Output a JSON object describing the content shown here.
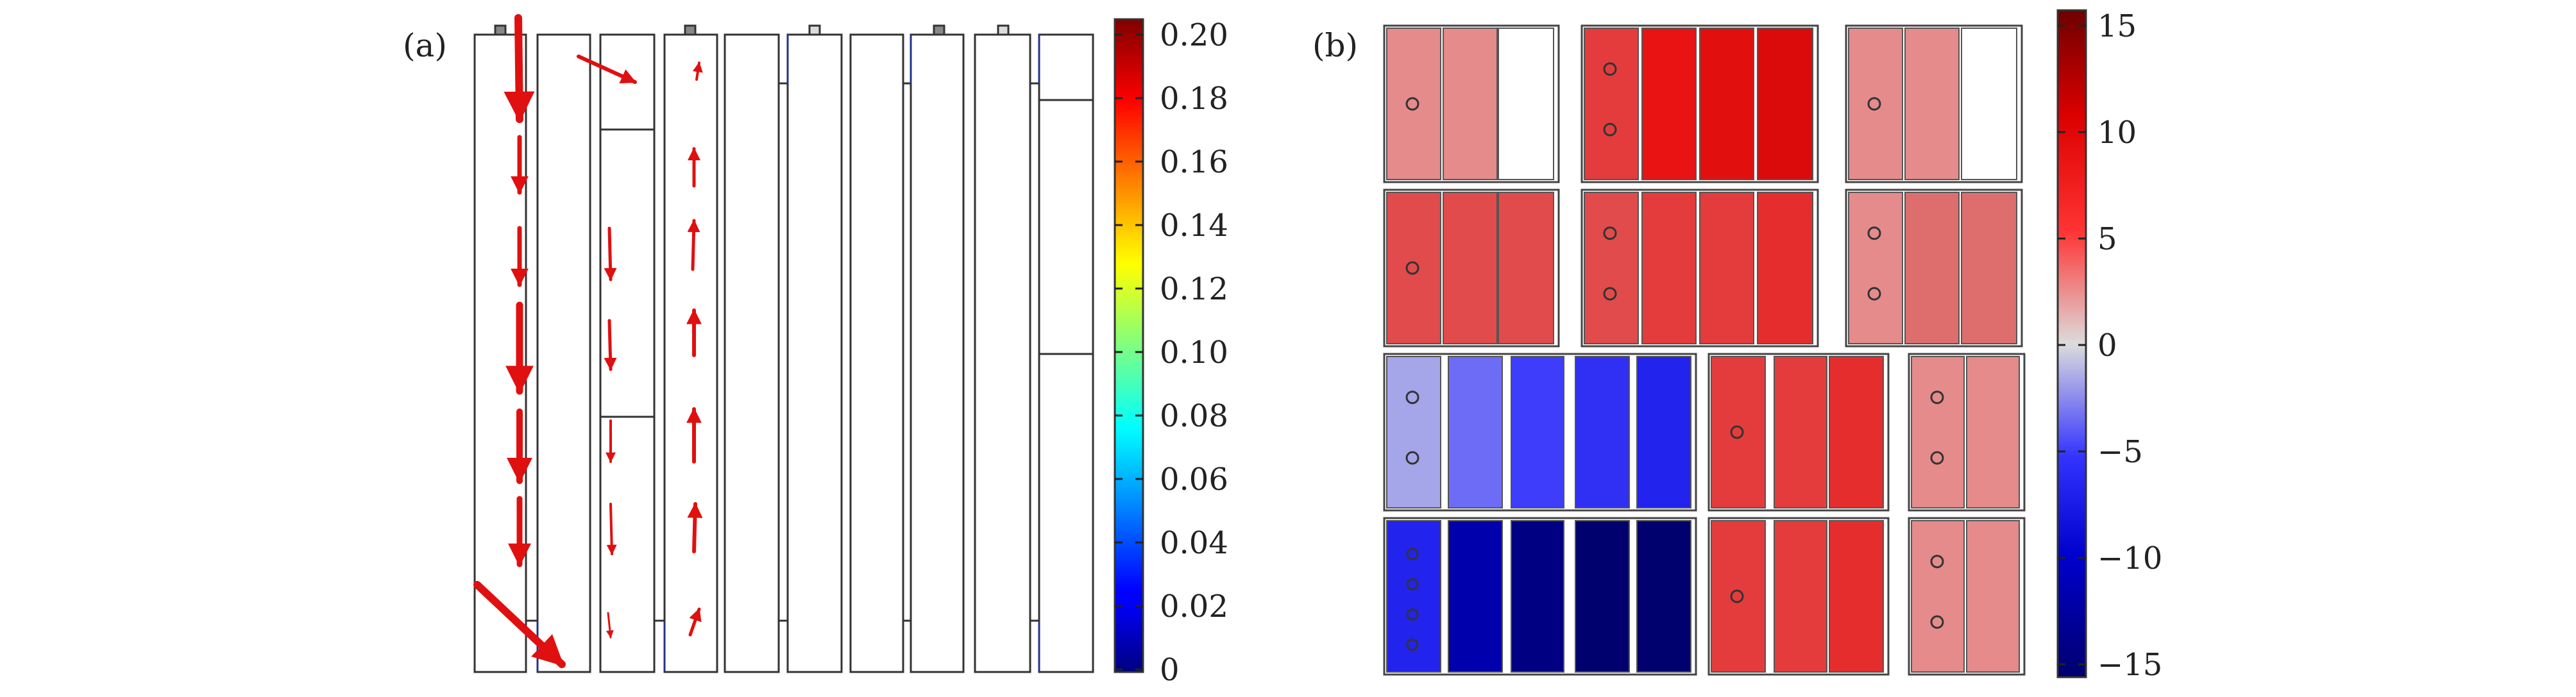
{
  "panel_a": {
    "label": "(a)",
    "colorbar": {
      "colormap": "jet",
      "ticks": [
        "0",
        "0.02",
        "0.04",
        "0.06",
        "0.08",
        "0.10",
        "0.12",
        "0.14",
        "0.16",
        "0.18",
        "0.20"
      ]
    }
  },
  "panel_b": {
    "label": "(b)",
    "colorbar": {
      "colormap": "blue-white-red",
      "ticks": [
        "−15",
        "−10",
        "−5",
        "0",
        "5",
        "10",
        "15"
      ]
    },
    "rows": [
      {
        "cells": [
          {
            "value": 4,
            "circles": 1
          },
          {
            "value": 4,
            "circles": 0
          },
          {
            "value": 0,
            "circles": 0
          },
          {
            "value": 8,
            "circles": 2
          },
          {
            "value": 11,
            "circles": 0
          },
          {
            "value": 12,
            "circles": 0
          },
          {
            "value": 13,
            "circles": 0
          },
          {
            "value": 4,
            "circles": 1
          },
          {
            "value": 4,
            "circles": 0
          },
          {
            "value": 0,
            "circles": 0
          }
        ]
      },
      {
        "cells": [
          {
            "value": 7,
            "circles": 1
          },
          {
            "value": 7,
            "circles": 0
          },
          {
            "value": 7,
            "circles": 0
          },
          {
            "value": 7,
            "circles": 2
          },
          {
            "value": 8,
            "circles": 0
          },
          {
            "value": 8,
            "circles": 0
          },
          {
            "value": 9,
            "circles": 0
          },
          {
            "value": 4,
            "circles": 2
          },
          {
            "value": 5,
            "circles": 0
          },
          {
            "value": 5,
            "circles": 0
          }
        ]
      },
      {
        "cells": [
          {
            "value": -2,
            "circles": 2
          },
          {
            "value": -4,
            "circles": 0
          },
          {
            "value": -6,
            "circles": 0
          },
          {
            "value": -7,
            "circles": 0
          },
          {
            "value": -8,
            "circles": 0
          },
          {
            "value": 8,
            "circles": 1
          },
          {
            "value": 8,
            "circles": 0
          },
          {
            "value": 9,
            "circles": 0
          },
          {
            "value": 4,
            "circles": 2
          },
          {
            "value": 4,
            "circles": 0
          }
        ]
      },
      {
        "cells": [
          {
            "value": -8,
            "circles": 4
          },
          {
            "value": -13,
            "circles": 0
          },
          {
            "value": -15,
            "circles": 0
          },
          {
            "value": -16,
            "circles": 0
          },
          {
            "value": -16,
            "circles": 0
          },
          {
            "value": 8,
            "circles": 1
          },
          {
            "value": 8,
            "circles": 0
          },
          {
            "value": 9,
            "circles": 0
          },
          {
            "value": 4,
            "circles": 2
          },
          {
            "value": 4,
            "circles": 0
          }
        ]
      }
    ]
  }
}
